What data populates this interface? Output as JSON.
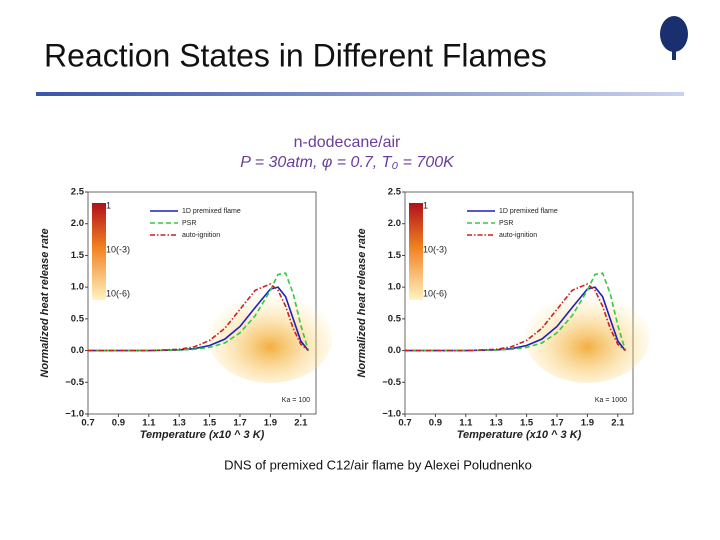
{
  "slide_title": "Reaction States in Different Flames",
  "figure_title": "n-dodecane/air",
  "figure_subtitle": "P = 30atm, φ = 0.7, T₀ = 700K",
  "caption": "DNS of premixed C12/air flame by Alexei Poludnenko",
  "chart_data": [
    {
      "type": "line",
      "xlabel": "Temperature (x10 ^ 3 K)",
      "ylabel": "Normalized heat release rate",
      "annotation": "Ka = 100",
      "colorbar_labels": [
        "1",
        "10(-3)",
        "10(-6)"
      ],
      "xlim": [
        0.7,
        2.2
      ],
      "ylim": [
        -1.0,
        2.5
      ],
      "xticks": [
        0.7,
        0.9,
        1.1,
        1.3,
        1.5,
        1.7,
        1.9,
        2.1
      ],
      "yticks": [
        {
          "value": -1,
          "label": "−1.0"
        },
        {
          "value": -0.5,
          "label": "−0.5"
        },
        {
          "value": 0,
          "label": "0.0"
        },
        {
          "value": 0.5,
          "label": "0.5"
        },
        {
          "value": 1,
          "label": "1.0"
        },
        {
          "value": 1.5,
          "label": "1.5"
        },
        {
          "value": 2,
          "label": "2.0"
        },
        {
          "value": 2.5,
          "label": "2.5"
        }
      ],
      "x": [
        0.7,
        0.9,
        1.1,
        1.3,
        1.4,
        1.5,
        1.6,
        1.7,
        1.8,
        1.9,
        1.95,
        2.0,
        2.05,
        2.1,
        2.15
      ],
      "series": [
        {
          "name": "1D premixed flame",
          "color": "#1f1fbf",
          "style": "solid",
          "values": [
            0,
            0,
            0,
            0.01,
            0.03,
            0.08,
            0.18,
            0.38,
            0.68,
            0.97,
            1.0,
            0.85,
            0.5,
            0.15,
            0
          ]
        },
        {
          "name": "PSR",
          "color": "#2ecc40",
          "style": "dashed",
          "values": [
            0,
            0,
            0,
            0.01,
            0.02,
            0.05,
            0.12,
            0.28,
            0.55,
            0.95,
            1.2,
            1.22,
            0.9,
            0.4,
            0
          ]
        },
        {
          "name": "auto-ignition",
          "color": "#cc2020",
          "style": "dashdot",
          "values": [
            0,
            0,
            0,
            0.02,
            0.06,
            0.16,
            0.35,
            0.65,
            0.95,
            1.05,
            0.95,
            0.7,
            0.35,
            0.1,
            0
          ]
        }
      ]
    },
    {
      "type": "line",
      "xlabel": "Temperature (x10 ^ 3 K)",
      "ylabel": "Normalized heat release rate",
      "annotation": "Ka = 1000",
      "colorbar_labels": [
        "1",
        "10(-3)",
        "10(-6)"
      ],
      "xlim": [
        0.7,
        2.2
      ],
      "ylim": [
        -1.0,
        2.5
      ],
      "xticks": [
        0.7,
        0.9,
        1.1,
        1.3,
        1.5,
        1.7,
        1.9,
        2.1
      ],
      "yticks": [
        {
          "value": -1,
          "label": "−1.0"
        },
        {
          "value": -0.5,
          "label": "−0.5"
        },
        {
          "value": 0,
          "label": "0.0"
        },
        {
          "value": 0.5,
          "label": "0.5"
        },
        {
          "value": 1,
          "label": "1.0"
        },
        {
          "value": 1.5,
          "label": "1.5"
        },
        {
          "value": 2,
          "label": "2.0"
        },
        {
          "value": 2.5,
          "label": "2.5"
        }
      ],
      "x": [
        0.7,
        0.9,
        1.1,
        1.3,
        1.4,
        1.5,
        1.6,
        1.7,
        1.8,
        1.9,
        1.95,
        2.0,
        2.05,
        2.1,
        2.15
      ],
      "series": [
        {
          "name": "1D premixed flame",
          "color": "#1f1fbf",
          "style": "solid",
          "values": [
            0,
            0,
            0,
            0.01,
            0.03,
            0.08,
            0.18,
            0.38,
            0.68,
            0.97,
            1.0,
            0.85,
            0.5,
            0.15,
            0
          ]
        },
        {
          "name": "PSR",
          "color": "#2ecc40",
          "style": "dashed",
          "values": [
            0,
            0,
            0,
            0.01,
            0.02,
            0.05,
            0.12,
            0.28,
            0.55,
            0.95,
            1.2,
            1.22,
            0.9,
            0.4,
            0
          ]
        },
        {
          "name": "auto-ignition",
          "color": "#cc2020",
          "style": "dashdot",
          "values": [
            0,
            0,
            0,
            0.02,
            0.06,
            0.16,
            0.35,
            0.65,
            0.95,
            1.05,
            0.95,
            0.7,
            0.35,
            0.1,
            0
          ]
        }
      ]
    }
  ]
}
